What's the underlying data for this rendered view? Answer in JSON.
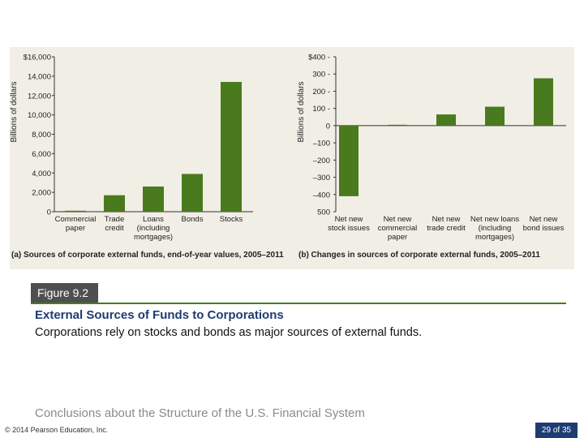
{
  "chart_data": [
    {
      "type": "bar",
      "caption": "(a) Sources of corporate external funds, end-of-year values, 2005–2011",
      "ylabel": "Billions of dollars",
      "ylim": [
        0,
        16000
      ],
      "yticks": [
        "0",
        "2,000",
        "4,000",
        "6,000",
        "8,000",
        "10,000",
        "12,000",
        "14,000",
        "$16,000"
      ],
      "ytick_values": [
        0,
        2000,
        4000,
        6000,
        8000,
        10000,
        12000,
        14000,
        16000
      ],
      "categories": [
        [
          "Commercial",
          "paper"
        ],
        [
          "Trade",
          "credit"
        ],
        [
          "Loans",
          "(including",
          "mortgages)"
        ],
        [
          "Bonds"
        ],
        [
          "Stocks"
        ]
      ],
      "values": [
        100,
        1700,
        2600,
        3900,
        13400
      ],
      "color": "#4a7a1e"
    },
    {
      "type": "bar",
      "caption": "(b) Changes in sources of corporate external funds, 2005–2011",
      "ylabel": "Billions of dollars",
      "ylim": [
        -500,
        400
      ],
      "yticks": [
        "500",
        "–400",
        "–300",
        "–200",
        "–100",
        "0",
        "100 -",
        "200 -",
        "300 -",
        "$400 -"
      ],
      "ytick_values": [
        -500,
        -400,
        -300,
        -200,
        -100,
        0,
        100,
        200,
        300,
        400
      ],
      "categories": [
        [
          "Net new",
          "stock issues"
        ],
        [
          "Net new",
          "commercial",
          "paper"
        ],
        [
          "Net new",
          "trade credit"
        ],
        [
          "Net new loans",
          "(including",
          "mortgages)"
        ],
        [
          "Net new",
          "bond issues"
        ]
      ],
      "values": [
        -410,
        5,
        65,
        110,
        275
      ],
      "color": "#4a7a1e"
    }
  ],
  "figure": {
    "label": "Figure 9.2",
    "title": "External Sources of Funds to Corporations",
    "caption": "Corporations rely on stocks and bonds as major sources of external funds."
  },
  "footer": {
    "section": "Conclusions about the Structure of the U.S. Financial System",
    "copyright": "© 2014 Pearson Education, Inc.",
    "page": "29 of 35"
  },
  "colors": {
    "bar": "#4a7a1e",
    "panel_bg": "#f1eee5",
    "title": "#1f3b73"
  }
}
